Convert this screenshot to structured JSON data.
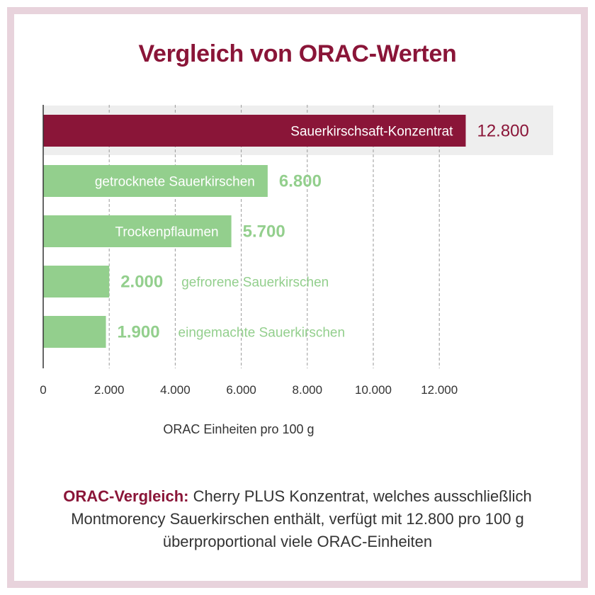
{
  "title": "Vergleich von ORAC-Werten",
  "colors": {
    "accent": "#8a1538",
    "series": "#93cf8d",
    "highlight_band": "#eeeeee",
    "frame": "#e8d3dc"
  },
  "chart_data": {
    "type": "bar",
    "orientation": "horizontal",
    "categories": [
      "Sauerkirschsaft-Konzentrat",
      "getrocknete Sauerkirschen",
      "Trockenpflaumen",
      "gefrorene Sauerkirschen",
      "eingemachte Sauerkirschen"
    ],
    "values": [
      12800,
      6800,
      5700,
      2000,
      1900
    ],
    "value_labels": [
      "12.800",
      "6.800",
      "5.700",
      "2.000",
      "1.900"
    ],
    "highlighted": "Sauerkirschsaft-Konzentrat",
    "xlim": [
      0,
      14000
    ],
    "xticks": [
      0,
      2000,
      4000,
      6000,
      8000,
      10000,
      12000
    ],
    "xtick_labels": [
      "0",
      "2.000",
      "4.000",
      "6.000",
      "8.000",
      "10.000",
      "12.000"
    ],
    "xlabel": "ORAC Einheiten pro 100 g",
    "grid": "vertical dashed",
    "legend": "none"
  },
  "caption": {
    "lead": "ORAC-Vergleich:",
    "text": " Cherry PLUS Konzentrat, welches ausschließlich Montmorency Sauerkirschen enthält, verfügt mit 12.800 pro 100 g überproportional viele ORAC-Einheiten"
  }
}
